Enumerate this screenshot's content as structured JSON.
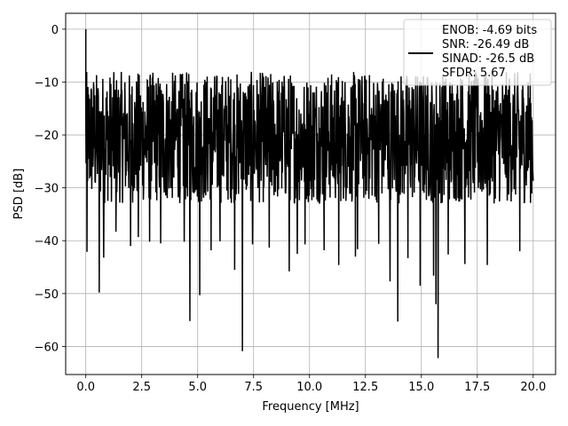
{
  "chart_data": {
    "type": "line",
    "xlabel": "Frequency [MHz]",
    "ylabel": "PSD [dB]",
    "xlim": [
      -0.9,
      21.0
    ],
    "ylim": [
      -65.3,
      3.0
    ],
    "x_ticks": [
      0.0,
      2.5,
      5.0,
      7.5,
      10.0,
      12.5,
      15.0,
      17.5,
      20.0
    ],
    "x_tick_labels": [
      "0.0",
      "2.5",
      "5.0",
      "7.5",
      "10.0",
      "12.5",
      "15.0",
      "17.5",
      "20.0"
    ],
    "y_ticks": [
      0,
      -10,
      -20,
      -30,
      -40,
      -50,
      -60
    ],
    "y_tick_labels": [
      "0",
      "−10",
      "−20",
      "−30",
      "−40",
      "−50",
      "−60"
    ],
    "grid": true,
    "legend": {
      "placement": "top-right",
      "entries": [
        "ENOB: -4.69 bits",
        "SNR: -26.49 dB",
        "SINAD: -26.5 dB",
        "SFDR: 5.67"
      ]
    },
    "series": [
      {
        "color": "#000000",
        "x_range": [
          0.0,
          20.0
        ],
        "noise_band_db": [
          -33,
          -8
        ],
        "peak": {
          "x": 0.0,
          "y": 0.0
        },
        "dips": [
          {
            "x": 0.05,
            "y": -42.1
          },
          {
            "x": 0.6,
            "y": -49.8
          },
          {
            "x": 0.8,
            "y": -43.2
          },
          {
            "x": 1.35,
            "y": -38.3
          },
          {
            "x": 2.0,
            "y": -41.0
          },
          {
            "x": 2.35,
            "y": -39.3
          },
          {
            "x": 2.85,
            "y": -40.2
          },
          {
            "x": 3.35,
            "y": -40.5
          },
          {
            "x": 4.4,
            "y": -40.2
          },
          {
            "x": 4.65,
            "y": -55.2
          },
          {
            "x": 5.1,
            "y": -50.3
          },
          {
            "x": 5.6,
            "y": -41.8
          },
          {
            "x": 6.0,
            "y": -40.1
          },
          {
            "x": 6.65,
            "y": -45.5
          },
          {
            "x": 7.0,
            "y": -60.9
          },
          {
            "x": 7.45,
            "y": -40.7
          },
          {
            "x": 8.2,
            "y": -41.3
          },
          {
            "x": 9.1,
            "y": -45.8
          },
          {
            "x": 9.45,
            "y": -42.5
          },
          {
            "x": 9.8,
            "y": -40.7
          },
          {
            "x": 10.65,
            "y": -41.8
          },
          {
            "x": 11.3,
            "y": -44.6
          },
          {
            "x": 12.05,
            "y": -43.0
          },
          {
            "x": 12.15,
            "y": -41.6
          },
          {
            "x": 13.1,
            "y": -40.6
          },
          {
            "x": 13.6,
            "y": -47.7
          },
          {
            "x": 13.95,
            "y": -55.3
          },
          {
            "x": 14.4,
            "y": -43.3
          },
          {
            "x": 14.95,
            "y": -48.5
          },
          {
            "x": 15.55,
            "y": -46.6
          },
          {
            "x": 15.65,
            "y": -52.0
          },
          {
            "x": 15.75,
            "y": -62.2
          },
          {
            "x": 16.2,
            "y": -42.6
          },
          {
            "x": 16.95,
            "y": -44.4
          },
          {
            "x": 17.95,
            "y": -44.6
          },
          {
            "x": 19.4,
            "y": -42.0
          }
        ]
      }
    ]
  }
}
